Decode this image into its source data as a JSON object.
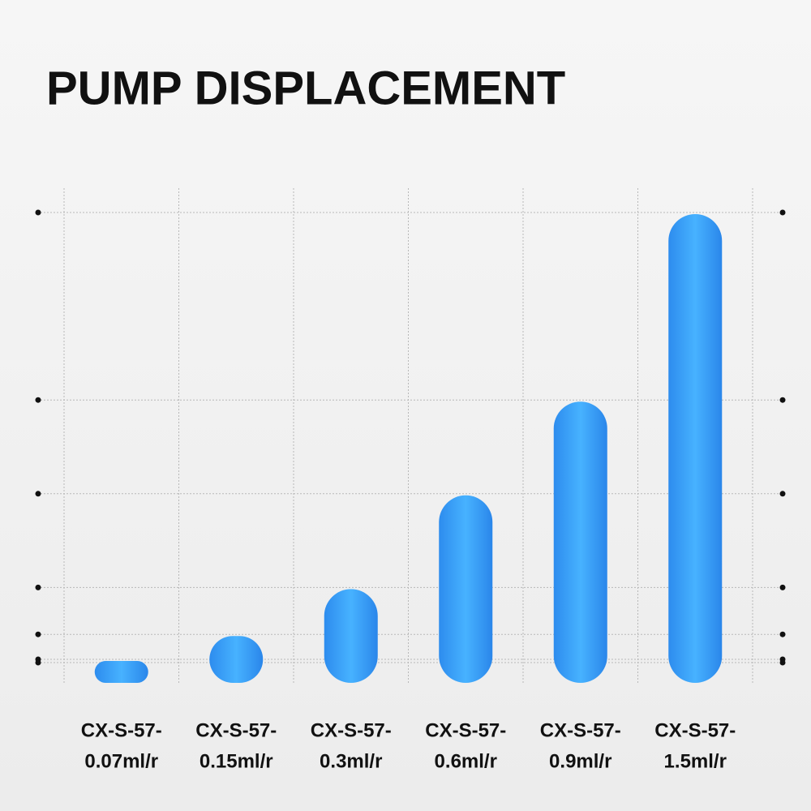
{
  "chart_data": {
    "type": "bar",
    "title": "PUMP DISPLACEMENT",
    "categories": [
      [
        "CX-S-57-",
        "0.07ml/r"
      ],
      [
        "CX-S-57-",
        "0.15ml/r"
      ],
      [
        "CX-S-57-",
        "0.3ml/r"
      ],
      [
        "CX-S-57-",
        "0.6ml/r"
      ],
      [
        "CX-S-57-",
        "0.9ml/r"
      ],
      [
        "CX-S-57-",
        "1.5ml/r"
      ]
    ],
    "values": [
      0.07,
      0.15,
      0.3,
      0.6,
      0.9,
      1.5
    ],
    "color": "#3aa0fa",
    "grid": true
  }
}
